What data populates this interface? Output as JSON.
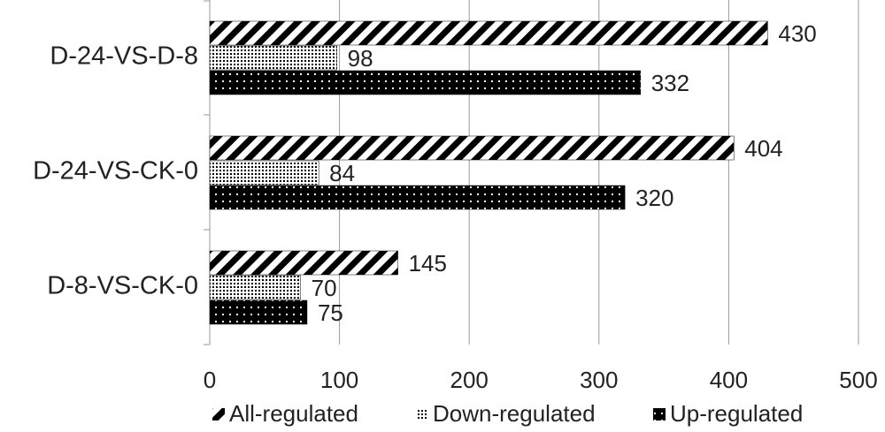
{
  "chart_data": {
    "type": "bar",
    "orientation": "horizontal",
    "categories": [
      "D-24-VS-D-8",
      "D-24-VS-CK-0",
      "D-8-VS-CK-0"
    ],
    "series": [
      {
        "name": "All-regulated",
        "color": "#000000",
        "pattern": "diagonal",
        "values": [
          430,
          404,
          145
        ]
      },
      {
        "name": "Down-regulated",
        "color": "#000000",
        "pattern": "light-dots",
        "values": [
          98,
          84,
          70
        ]
      },
      {
        "name": "Up-regulated",
        "color": "#000000",
        "pattern": "dark-dots",
        "values": [
          332,
          320,
          75
        ]
      }
    ],
    "xlim": [
      0,
      500
    ],
    "xticks": [
      0,
      100,
      200,
      300,
      400,
      500
    ],
    "grid": true,
    "legend": "bottom"
  }
}
